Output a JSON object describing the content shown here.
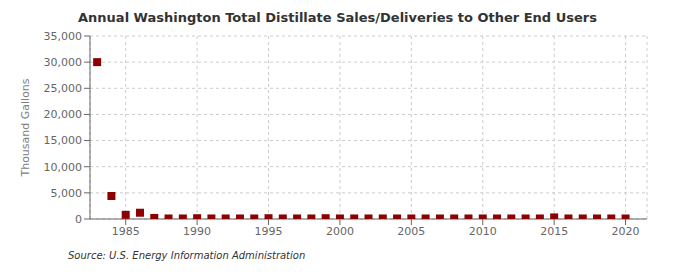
{
  "chart_data": {
    "type": "scatter",
    "title": "Annual Washington Total Distillate Sales/Deliveries to Other End Users",
    "ylabel": "Thousand Gallons",
    "source": "Source: U.S. Energy Information Administration",
    "color": "#8b0000",
    "marker": "square",
    "grid": true,
    "x": [
      1983,
      1984,
      1985,
      1986,
      1987,
      1988,
      1989,
      1990,
      1991,
      1992,
      1993,
      1994,
      1995,
      1996,
      1997,
      1998,
      1999,
      2000,
      2001,
      2002,
      2003,
      2004,
      2005,
      2006,
      2007,
      2008,
      2009,
      2010,
      2011,
      2012,
      2013,
      2014,
      2015,
      2016,
      2017,
      2018,
      2019,
      2020
    ],
    "values": [
      30000,
      4400,
      800,
      1200,
      200,
      100,
      100,
      150,
      100,
      100,
      100,
      100,
      150,
      100,
      100,
      100,
      150,
      100,
      100,
      100,
      100,
      100,
      100,
      100,
      100,
      100,
      100,
      100,
      100,
      100,
      100,
      100,
      300,
      100,
      100,
      100,
      100,
      100
    ],
    "xlim": [
      1982.5,
      2021.5
    ],
    "ylim": [
      0,
      35000
    ],
    "xticks": [
      1985,
      1990,
      1995,
      2000,
      2005,
      2010,
      2015,
      2020
    ],
    "yticks": [
      0,
      {
        "value": 5000,
        "label": "5,000"
      },
      {
        "value": 10000,
        "label": "10,000"
      },
      {
        "value": 15000,
        "label": "15,000"
      },
      {
        "value": 20000,
        "label": "20,000"
      },
      {
        "value": 25000,
        "label": "25,000"
      },
      {
        "value": 30000,
        "label": "30,000"
      },
      {
        "value": 35000,
        "label": "35,000"
      }
    ]
  }
}
